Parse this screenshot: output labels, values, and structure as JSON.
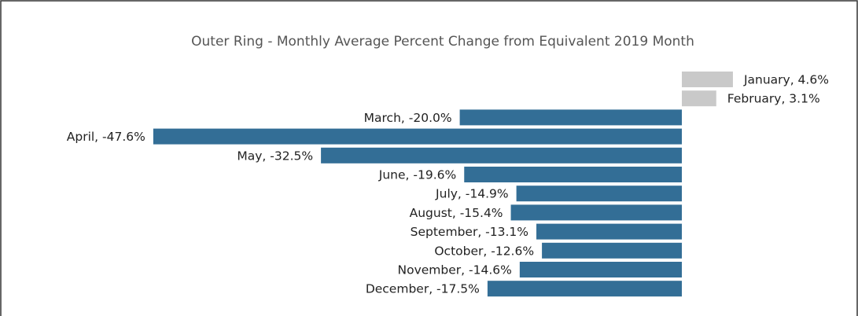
{
  "chart_data": {
    "type": "bar",
    "orientation": "horizontal",
    "title": "Outer Ring - Monthly Average Percent Change from Equivalent 2019 Month",
    "categories": [
      "January",
      "February",
      "March",
      "April",
      "May",
      "June",
      "July",
      "August",
      "September",
      "October",
      "November",
      "December"
    ],
    "values": [
      4.6,
      3.1,
      -20.0,
      -47.6,
      -32.5,
      -19.6,
      -14.9,
      -15.4,
      -13.1,
      -12.6,
      -14.6,
      -17.5
    ],
    "value_labels": [
      "January, 4.6%",
      "February, 3.1%",
      "March, -20.0%",
      "April, -47.6%",
      "May, -32.5%",
      "June, -19.6%",
      "July, -14.9%",
      "August, -15.4%",
      "September, -13.1%",
      "October, -12.6%",
      "November, -14.6%",
      "December, -17.5%"
    ],
    "positive_color": "#c9c9c9",
    "negative_color": "#336e96"
  }
}
